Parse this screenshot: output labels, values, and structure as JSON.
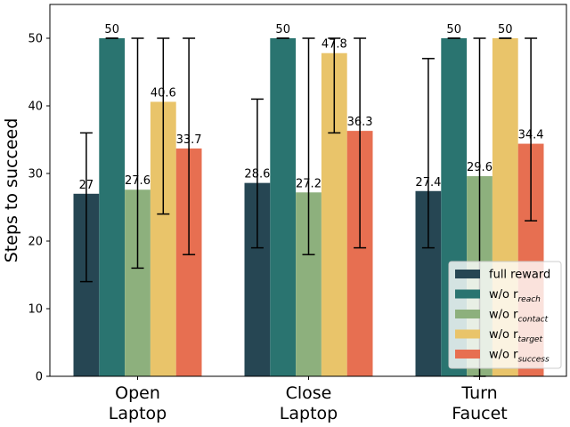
{
  "chart_data": {
    "type": "bar",
    "title": "",
    "xlabel": "",
    "ylabel": "Steps to succeed",
    "ylim": [
      0,
      55
    ],
    "yticks": [
      0,
      10,
      20,
      30,
      40,
      50
    ],
    "categories": [
      [
        "Open",
        "Laptop"
      ],
      [
        "Close",
        "Laptop"
      ],
      [
        "Turn",
        "Faucet"
      ]
    ],
    "series": [
      {
        "name": "full reward",
        "base": "full reward",
        "sub": "",
        "color": "#264653",
        "values": [
          27,
          28.6,
          27.4
        ],
        "labels": [
          "27",
          "28.6",
          "27.4"
        ],
        "err_low": [
          14,
          19,
          19
        ],
        "err_high": [
          36,
          41,
          47
        ]
      },
      {
        "name": "w/o r_reach",
        "base": "w/o r",
        "sub": "reach",
        "color": "#2a7470",
        "values": [
          50,
          50,
          50
        ],
        "labels": [
          "50",
          "50",
          "50"
        ],
        "err_low": [
          50,
          50,
          50
        ],
        "err_high": [
          50,
          50,
          50
        ]
      },
      {
        "name": "w/o r_contact",
        "base": "w/o r",
        "sub": "contact",
        "color": "#8db07d",
        "values": [
          27.6,
          27.2,
          29.6
        ],
        "labels": [
          "27.6",
          "27.2",
          "29.6"
        ],
        "err_low": [
          16,
          18,
          0
        ],
        "err_high": [
          50,
          50,
          50
        ]
      },
      {
        "name": "w/o r_target",
        "base": "w/o r",
        "sub": "target",
        "color": "#e9c46a",
        "values": [
          40.6,
          47.8,
          50
        ],
        "labels": [
          "40.6",
          "47.8",
          "50"
        ],
        "err_low": [
          24,
          36,
          50
        ],
        "err_high": [
          50,
          50,
          50
        ]
      },
      {
        "name": "w/o r_success",
        "base": "w/o r",
        "sub": "success",
        "color": "#e76f51",
        "values": [
          33.7,
          36.3,
          34.4
        ],
        "labels": [
          "33.7",
          "36.3",
          "34.4"
        ],
        "err_low": [
          18,
          19,
          23
        ],
        "err_high": [
          50,
          50,
          50
        ]
      }
    ],
    "legend_location": "lower-right",
    "grid": false
  }
}
